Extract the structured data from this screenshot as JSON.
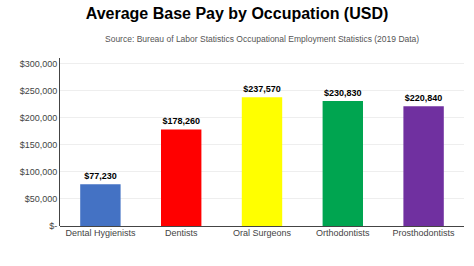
{
  "chart_data": {
    "type": "bar",
    "title": "Average Base Pay by Occupation (USD)",
    "subtitle": "Source: Bureau of Labor Statistics Occupational Employment Statistics (2019 Data)",
    "categories": [
      "Dental Hygienists",
      "Dentists",
      "Oral Surgeons",
      "Orthodontists",
      "Prosthodontists"
    ],
    "values": [
      77230,
      178260,
      237570,
      230830,
      220840
    ],
    "value_labels": [
      "$77,230",
      "$178,260",
      "$237,570",
      "$230,830",
      "$220,840"
    ],
    "data_labels": true,
    "colors": [
      "#4472C4",
      "#FF0000",
      "#FFFF00",
      "#00A550",
      "#7030A0"
    ],
    "ylim": [
      0,
      310000
    ],
    "yticks": [
      {
        "value": 0,
        "label": "$-"
      },
      {
        "value": 50000,
        "label": "$50,000"
      },
      {
        "value": 100000,
        "label": "$100,000"
      },
      {
        "value": 150000,
        "label": "$150,000"
      },
      {
        "value": 200000,
        "label": "$200,000"
      },
      {
        "value": 250000,
        "label": "$250,000"
      },
      {
        "value": 300000,
        "label": "$300,000"
      }
    ],
    "grid": true
  }
}
